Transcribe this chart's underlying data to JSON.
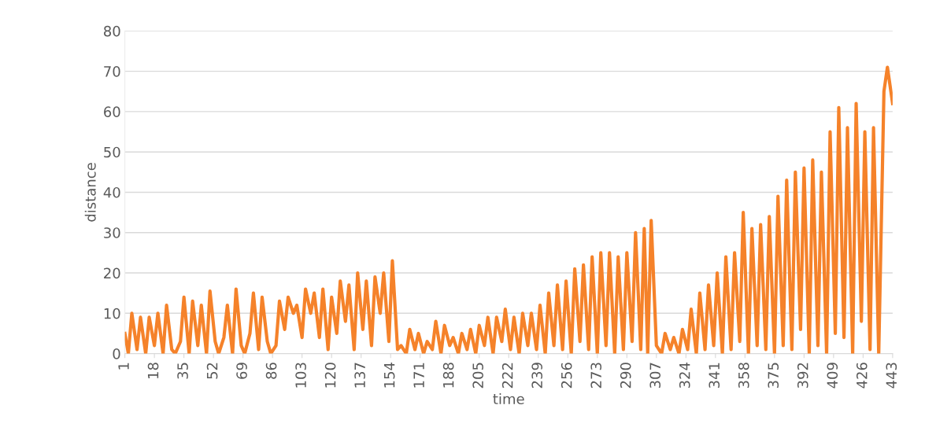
{
  "chart_data": {
    "type": "line",
    "xlabel": "time",
    "ylabel": "distance",
    "x": [
      1,
      3,
      5,
      8,
      10,
      13,
      15,
      18,
      20,
      23,
      25,
      28,
      30,
      33,
      35,
      38,
      40,
      43,
      45,
      48,
      50,
      53,
      55,
      58,
      60,
      63,
      65,
      68,
      70,
      73,
      75,
      78,
      80,
      83,
      85,
      88,
      90,
      93,
      95,
      98,
      100,
      103,
      105,
      108,
      110,
      113,
      115,
      118,
      120,
      123,
      125,
      128,
      130,
      133,
      135,
      138,
      140,
      143,
      145,
      148,
      150,
      153,
      155,
      158,
      160,
      163,
      165,
      168,
      170,
      173,
      175,
      178,
      180,
      183,
      185,
      188,
      190,
      193,
      195,
      198,
      200,
      203,
      205,
      208,
      210,
      213,
      215,
      218,
      220,
      223,
      225,
      228,
      230,
      233,
      235,
      238,
      240,
      243,
      245,
      248,
      250,
      253,
      255,
      258,
      260,
      263,
      265,
      268,
      270,
      273,
      275,
      278,
      280,
      283,
      285,
      288,
      290,
      293,
      295,
      298,
      300,
      302,
      304,
      307,
      310,
      312,
      315,
      317,
      320,
      322,
      325,
      327,
      330,
      332,
      335,
      337,
      340,
      342,
      345,
      347,
      350,
      352,
      355,
      357,
      360,
      362,
      365,
      367,
      370,
      372,
      375,
      377,
      380,
      382,
      385,
      387,
      390,
      392,
      395,
      397,
      400,
      402,
      405,
      407,
      410,
      412,
      415,
      417,
      420,
      422,
      425,
      427,
      430,
      432,
      435,
      438,
      440,
      443
    ],
    "series": [
      {
        "color": "#f5822a",
        "values": [
          5,
          0,
          10,
          1,
          9,
          0,
          9,
          2,
          10,
          0,
          12,
          1,
          0,
          3,
          14,
          0,
          13,
          2,
          12,
          0,
          15.5,
          3,
          0,
          4,
          12,
          0,
          16,
          2,
          0,
          5,
          15,
          1,
          14,
          3,
          0,
          2,
          13,
          6,
          14,
          10,
          12,
          4,
          16,
          10,
          15,
          4,
          16,
          1,
          14,
          5,
          18,
          8,
          17,
          1,
          20,
          6,
          18,
          2,
          19,
          10,
          20,
          3,
          23,
          1,
          2,
          0,
          6,
          1,
          5,
          0,
          3,
          1,
          8,
          0,
          7,
          2,
          4,
          0,
          5,
          1,
          6,
          0,
          7,
          2,
          9,
          0,
          9,
          3,
          11,
          1,
          9,
          0,
          10,
          2,
          10,
          1,
          12,
          0,
          15,
          2,
          17,
          1,
          18,
          0,
          21,
          3,
          22,
          1,
          24,
          0,
          25,
          2,
          25,
          0,
          24,
          1,
          25,
          3,
          30,
          1,
          31,
          0,
          33,
          2,
          0,
          5,
          1,
          4,
          0,
          6,
          1,
          11,
          0,
          15,
          1,
          17,
          2,
          20,
          0,
          24,
          1,
          25,
          3,
          35,
          0,
          31,
          2,
          32,
          1,
          34,
          0,
          39,
          2,
          43,
          1,
          45,
          6,
          46,
          0,
          48,
          2,
          45,
          0,
          55,
          5,
          61,
          4,
          56,
          0,
          62,
          8,
          55,
          1,
          56,
          0,
          65,
          71,
          62
        ]
      }
    ],
    "xlim": [
      1,
      443
    ],
    "xticks": [
      1,
      18,
      35,
      52,
      69,
      86,
      103,
      120,
      137,
      154,
      171,
      188,
      205,
      222,
      239,
      256,
      273,
      290,
      307,
      324,
      341,
      358,
      375,
      392,
      409,
      426,
      443
    ],
    "ylim": [
      0,
      80
    ],
    "yticks": [
      0,
      10,
      20,
      30,
      40,
      50,
      60,
      70,
      80
    ],
    "grid": "y",
    "marker": "none",
    "line_style": "solid"
  }
}
